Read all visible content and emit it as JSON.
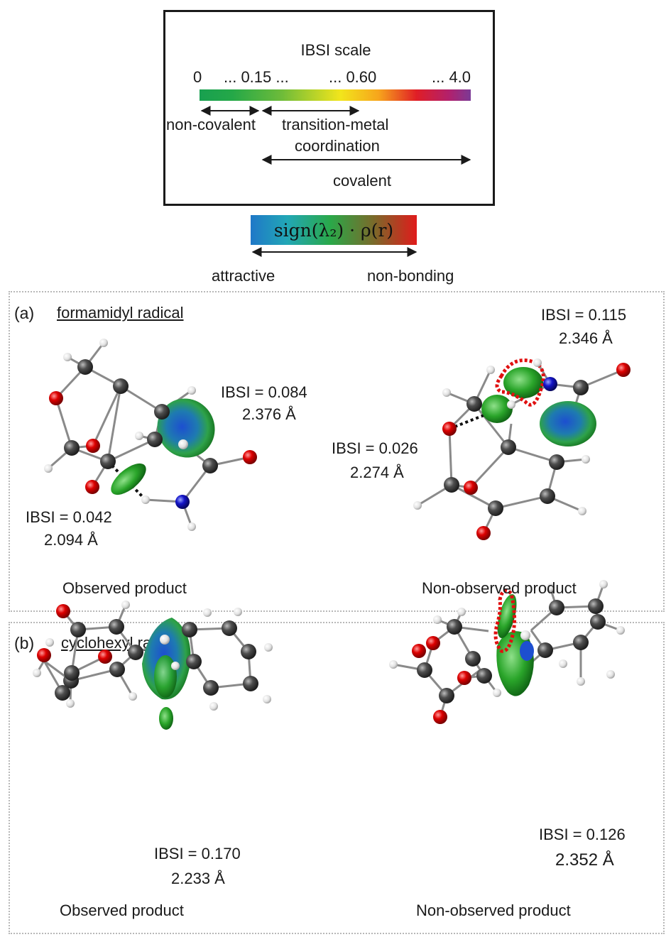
{
  "ibsi_scale": {
    "title": "IBSI scale",
    "ticks": [
      "0",
      "... 0.15 ...",
      "... 0.60",
      "... 4.0"
    ],
    "ranges": [
      "non-covalent",
      "transition-metal",
      "coordination",
      "covalent"
    ],
    "colors": [
      "#18a050",
      "#f2e51c",
      "#e01e26",
      "#7b3a96"
    ]
  },
  "sign_scale": {
    "label": "sign(λ₂) · ρ(r)",
    "left_label": "attractive",
    "right_label": "non-bonding",
    "colors": [
      "#1f78c8",
      "#2aa849",
      "#e01b1b"
    ]
  },
  "panel_a": {
    "tag": "(a)",
    "title": "formamidyl radical",
    "observed": {
      "caption": "Observed product",
      "labels": [
        {
          "ibsi": "IBSI = 0.084",
          "dist": "2.376 Å"
        },
        {
          "ibsi": "IBSI = 0.042",
          "dist": "2.094 Å"
        }
      ]
    },
    "non_observed": {
      "caption": "Non-observed product",
      "labels": [
        {
          "ibsi": "IBSI = 0.115",
          "dist": "2.346 Å"
        },
        {
          "ibsi": "IBSI = 0.026",
          "dist": "2.274 Å"
        }
      ]
    }
  },
  "panel_b": {
    "tag": "(b)",
    "title": "cyclohexyl radical",
    "observed": {
      "caption": "Observed product",
      "labels": [
        {
          "ibsi": "IBSI = 0.170",
          "dist": "2.233 Å"
        }
      ]
    },
    "non_observed": {
      "caption": "Non-observed product",
      "labels": [
        {
          "ibsi": "IBSI = 0.126",
          "dist": "2.352 Å"
        }
      ]
    }
  },
  "atom_colors": {
    "carbon": "#444444",
    "oxygen": "#d00000",
    "nitrogen": "#1010c0",
    "hydrogen": "#e6e6e6",
    "bond": "#8a8a8a",
    "isosurface": "#2aa52a",
    "highlight": "#e01010"
  }
}
